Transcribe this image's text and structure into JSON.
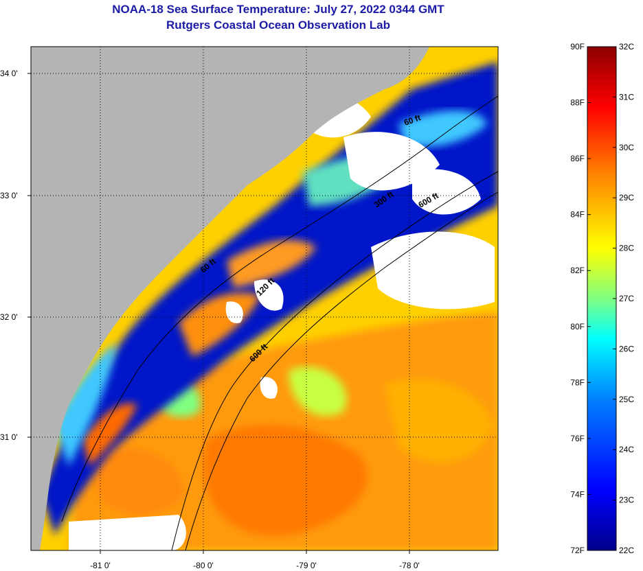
{
  "header": {
    "title": "NOAA-18 Sea Surface Temperature:  July 27, 2022 0344 GMT",
    "subtitle": "Rutgers Coastal Ocean Observation Lab"
  },
  "map": {
    "lat_ticks": [
      "34 0'",
      "33 0'",
      "32 0'",
      "31 0'"
    ],
    "lon_ticks": [
      "-81 0'",
      "-80 0'",
      "-79 0'",
      "-78 0'"
    ],
    "contour_labels": [
      "60 ft",
      "120 ft",
      "600 ft",
      "300 ft",
      "600 ft",
      "60 ft"
    ]
  },
  "colorbar": {
    "fahrenheit": [
      "90F",
      "88F",
      "86F",
      "84F",
      "82F",
      "80F",
      "78F",
      "76F",
      "74F",
      "72F"
    ],
    "celsius": [
      "32C",
      "31C",
      "30C",
      "29C",
      "28C",
      "27C",
      "26C",
      "25C",
      "24C",
      "23C",
      "22C"
    ],
    "colors": [
      "#00008c",
      "#0000ff",
      "#0080ff",
      "#00ffff",
      "#80ff80",
      "#ffff00",
      "#ff8000",
      "#ff0000",
      "#8c0000"
    ]
  }
}
